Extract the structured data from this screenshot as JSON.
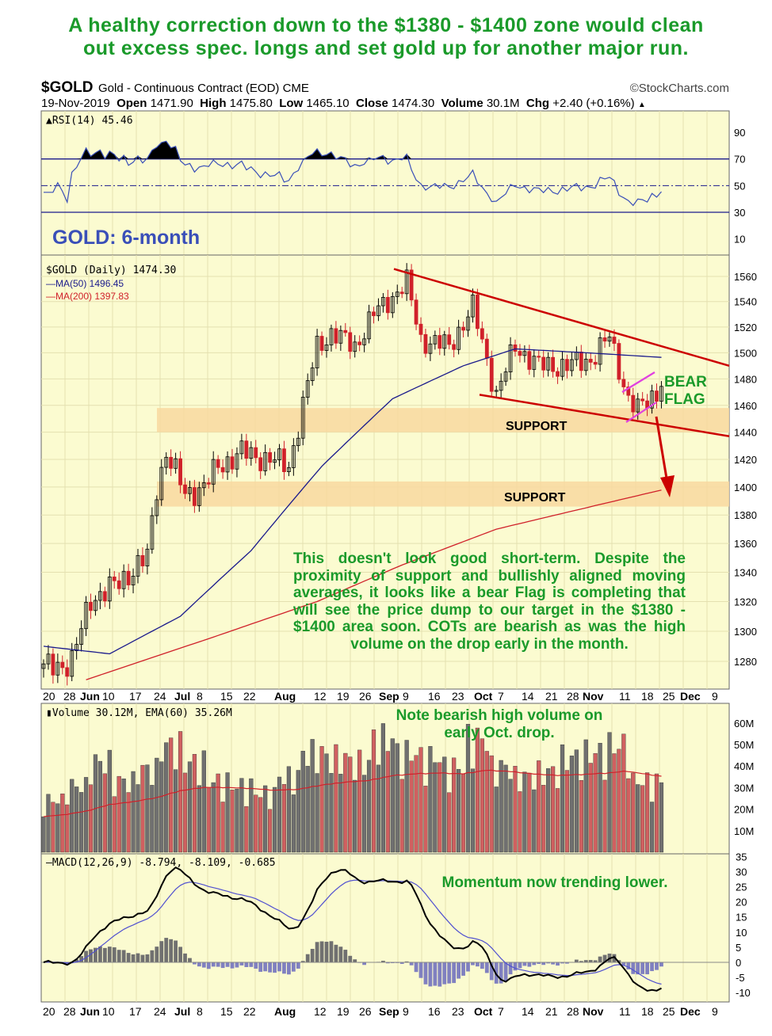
{
  "headline": [
    "A healthy correction down to the $1380 - $1400 zone would clean",
    "out excess spec. longs and set gold up for another major run."
  ],
  "header": {
    "symbol": "$GOLD",
    "name": "Gold - Continuous Contract (EOD) CME",
    "credit": "©StockCharts.com",
    "quote": {
      "date": "19-Nov-2019",
      "open_label": "Open",
      "open": "1471.90",
      "high_label": "High",
      "high": "1475.80",
      "low_label": "Low",
      "low": "1465.10",
      "close_label": "Close",
      "close": "1474.30",
      "volume_label": "Volume",
      "volume": "30.1M",
      "chg_label": "Chg",
      "chg": "+2.40 (+0.16%)"
    }
  },
  "colors": {
    "up": "#000000",
    "down": "#d0212a",
    "ma50": "#1a1a8c",
    "ma200": "#d0212a",
    "panel_bg": "#fbfbd0",
    "support": "#f8d8a0",
    "annotation": "#1a9a2a",
    "trend": "#cc0000",
    "flag": "#e040e0",
    "title": "#3a4fb8"
  },
  "chart_data": [
    {
      "type": "line",
      "panel": "RSI",
      "label": "RSI(14) 45.46",
      "yticks": [
        90,
        70,
        50,
        30,
        10
      ],
      "ylim": [
        0,
        100
      ],
      "overbought": 70,
      "oversold": 30
    },
    {
      "type": "candlestick",
      "panel": "price",
      "title": "GOLD: 6-month",
      "legend": [
        "$GOLD (Daily) 1474.30",
        "MA(50) 1496.45",
        "MA(200) 1397.83"
      ],
      "yscale": "log",
      "ylim": [
        1262,
        1575
      ],
      "yticks": [
        1560,
        1540,
        1520,
        1500,
        1480,
        1460,
        1440,
        1420,
        1400,
        1380,
        1360,
        1340,
        1320,
        1300,
        1280
      ],
      "xticks": [
        "20",
        "28",
        "Jun",
        "10",
        "17",
        "24",
        "Jul",
        "8",
        "15",
        "22",
        "Aug",
        "12",
        "19",
        "26",
        "Sep",
        "9",
        "16",
        "23",
        "Oct",
        "7",
        "14",
        "21",
        "28",
        "Nov",
        "11",
        "18",
        "25",
        "Dec",
        "9"
      ],
      "start_date": "2019-05-20",
      "end_date": "2019-11-19",
      "close_keypoints": [
        [
          "2019-05-20",
          1275
        ],
        [
          "2019-05-28",
          1280
        ],
        [
          "2019-06-03",
          1322
        ],
        [
          "2019-06-10",
          1330
        ],
        [
          "2019-06-14",
          1342
        ],
        [
          "2019-06-19",
          1350
        ],
        [
          "2019-06-21",
          1400
        ],
        [
          "2019-06-25",
          1425
        ],
        [
          "2019-07-01",
          1395
        ],
        [
          "2019-07-05",
          1400
        ],
        [
          "2019-07-10",
          1415
        ],
        [
          "2019-07-17",
          1425
        ],
        [
          "2019-07-25",
          1420
        ],
        [
          "2019-07-31",
          1415
        ],
        [
          "2019-08-06",
          1475
        ],
        [
          "2019-08-08",
          1505
        ],
        [
          "2019-08-13",
          1515
        ],
        [
          "2019-08-20",
          1505
        ],
        [
          "2019-08-26",
          1530
        ],
        [
          "2019-09-04",
          1555
        ],
        [
          "2019-09-09",
          1510
        ],
        [
          "2019-09-17",
          1505
        ],
        [
          "2019-09-24",
          1535
        ],
        [
          "2019-10-01",
          1468
        ],
        [
          "2019-10-07",
          1505
        ],
        [
          "2019-10-14",
          1490
        ],
        [
          "2019-10-22",
          1490
        ],
        [
          "2019-10-29",
          1495
        ],
        [
          "2019-11-04",
          1512
        ],
        [
          "2019-11-08",
          1465
        ],
        [
          "2019-11-12",
          1456
        ],
        [
          "2019-11-19",
          1474.3
        ]
      ],
      "ma50_keypoints": [
        [
          "2019-05-20",
          1290
        ],
        [
          "2019-06-07",
          1285
        ],
        [
          "2019-06-28",
          1310
        ],
        [
          "2019-07-19",
          1355
        ],
        [
          "2019-08-09",
          1415
        ],
        [
          "2019-08-30",
          1465
        ],
        [
          "2019-09-20",
          1490
        ],
        [
          "2019-10-07",
          1503
        ],
        [
          "2019-10-28",
          1500
        ],
        [
          "2019-11-19",
          1496.45
        ]
      ],
      "ma200_keypoints": [
        [
          "2019-05-31",
          1268
        ],
        [
          "2019-07-08",
          1295
        ],
        [
          "2019-08-08",
          1320
        ],
        [
          "2019-09-03",
          1345
        ],
        [
          "2019-10-01",
          1370
        ],
        [
          "2019-11-19",
          1397.83
        ]
      ],
      "support_zones": [
        [
          1440,
          1458
        ],
        [
          1386,
          1404
        ]
      ],
      "support_label": "SUPPORT",
      "flag_label": [
        "BEAR",
        "FLAG"
      ],
      "annotation": "This doesn't look good short-term. Despite the proximity of support and bullishly aligned moving averages, it looks like a bear Flag is completing that will see the price dump to our target in the $1380 - $1400 area soon. COTs are bearish as was the high volume on the drop early in the month."
    },
    {
      "type": "bar",
      "panel": "volume",
      "label": "Volume 30.12M, EMA(60) 35.26M",
      "yticks": [
        "60M",
        "50M",
        "40M",
        "30M",
        "20M",
        "10M"
      ],
      "ylim": [
        0,
        66
      ],
      "weekly_avg_millions": [
        22,
        28,
        38,
        30,
        35,
        45,
        38,
        30,
        28,
        25,
        32,
        42,
        40,
        38,
        48,
        42,
        40,
        36,
        48,
        36,
        32,
        34,
        40,
        42,
        45,
        30,
        30
      ],
      "ema": 35.26,
      "annotation": "Note bearish high volume on early Oct. drop."
    },
    {
      "type": "line",
      "panel": "MACD",
      "label": "MACD(12,26,9) -8.794, -8.109, -0.685",
      "yticks": [
        35,
        30,
        25,
        20,
        15,
        10,
        5,
        0,
        -5,
        -10
      ],
      "ylim": [
        -12,
        36
      ],
      "annotation": "Momentum now trending lower."
    }
  ]
}
